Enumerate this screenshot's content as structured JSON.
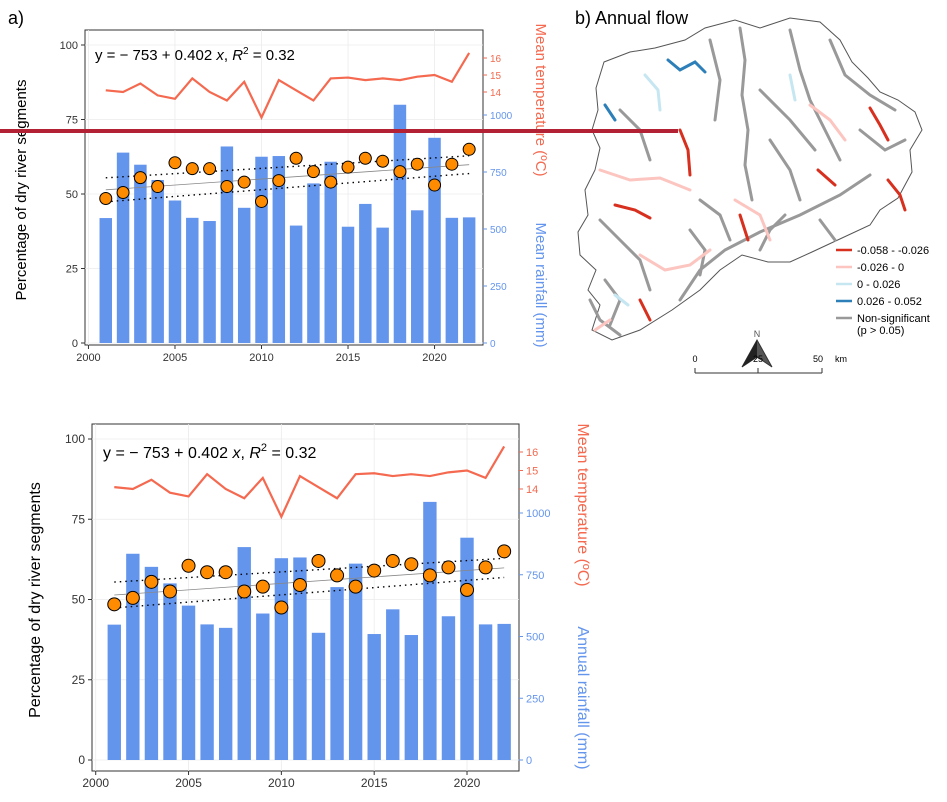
{
  "panel_a_label": "a)",
  "panel_b_label": "b) Annual flow",
  "colors": {
    "bars": "#6495ED",
    "temperature_line": "#F4694F",
    "points_fill": "#FF8C00",
    "trend_up": "#d7301f",
    "trend_light_up": "#fcc5c0",
    "trend_light_down": "#c6e6f2",
    "trend_down": "#2c7fb8",
    "non_significant": "#999999",
    "divider": "#B22234"
  },
  "chart_data": [
    {
      "type": "bar",
      "panel": "a",
      "equation": "y = − 753 + 0.402 x, R² = 0.32",
      "equation_prefix": "y = − 753 + 0.402 ",
      "equation_x": "x",
      "equation_mid": ", ",
      "equation_r": "R",
      "equation_sup": "2",
      "equation_suffix": " = 0.32",
      "ylabel_left": "Percentage of dry river segments",
      "ylabel_right_temp": "Mean temperature (ºC)",
      "ylabel_right_rain": "Mean rainfall (mm)",
      "x_ticks": [
        "2000",
        "2005",
        "2010",
        "2015",
        "2020"
      ],
      "y_ticks_left": [
        "0",
        "25",
        "50",
        "75",
        "100"
      ],
      "temp_ticks": [
        "14",
        "15",
        "16"
      ],
      "rain_ticks": [
        "0",
        "250",
        "500",
        "750",
        "1000"
      ],
      "xlim": [
        1999.8,
        2022.8
      ],
      "ylim": [
        0,
        100
      ],
      "temp_range": [
        14,
        16
      ],
      "rain_range": [
        0,
        1000
      ],
      "years": [
        2001,
        2002,
        2003,
        2004,
        2005,
        2006,
        2007,
        2008,
        2009,
        2010,
        2011,
        2012,
        2013,
        2014,
        2015,
        2016,
        2017,
        2018,
        2019,
        2020,
        2021,
        2022
      ],
      "rainfall_mm": [
        548,
        835,
        782,
        715,
        625,
        549,
        535,
        862,
        593,
        817,
        820,
        515,
        700,
        795,
        510,
        610,
        506,
        1045,
        582,
        900,
        549,
        551
      ],
      "dry_percentage": [
        48.5,
        50.5,
        55.5,
        52.5,
        60.5,
        58.5,
        58.5,
        52.5,
        54,
        47.5,
        54.5,
        62,
        57.5,
        54,
        59,
        62,
        61,
        57.5,
        60,
        53,
        60,
        65
      ],
      "mean_temperature": [
        14.1,
        14.0,
        14.5,
        13.8,
        13.6,
        14.8,
        14.0,
        13.5,
        14.6,
        12.5,
        14.7,
        14.1,
        13.5,
        14.8,
        14.85,
        14.7,
        14.8,
        14.7,
        14.9,
        15.0,
        14.6,
        16.3
      ],
      "trend": {
        "intercept": -753,
        "slope": 0.402,
        "r2": 0.32
      }
    },
    {
      "type": "bar",
      "panel": "a-repeat",
      "equation_prefix": "y = − 753 + 0.402 ",
      "equation_x": "x",
      "equation_mid": ", ",
      "equation_r": "R",
      "equation_sup": "2",
      "equation_suffix": " = 0.32",
      "ylabel_left": "Percentage of dry river segments",
      "ylabel_right_temp": "Mean temperature (ºC)",
      "ylabel_right_rain": "Annual rainfall (mm)",
      "x_ticks": [
        "2000",
        "2005",
        "2010",
        "2015",
        "2020"
      ],
      "y_ticks_left": [
        "0",
        "25",
        "50",
        "75",
        "100"
      ],
      "temp_ticks": [
        "14",
        "15",
        "16"
      ],
      "rain_ticks": [
        "0",
        "250",
        "500",
        "750",
        "1000"
      ]
    }
  ],
  "map": {
    "legend": [
      {
        "label": "-0.058 - -0.026",
        "color": "#d7301f"
      },
      {
        "label": "-0.026 - 0",
        "color": "#fcc5c0"
      },
      {
        "label": "0 - 0.026",
        "color": "#c6e6f2"
      },
      {
        "label": "0.026 - 0.052",
        "color": "#2c7fb8"
      },
      {
        "label": "Non-significant",
        "color": "#999999"
      },
      {
        "label": "(p > 0.05)",
        "color": ""
      }
    ],
    "north_label": "N",
    "scale_labels": [
      "0",
      "25",
      "50",
      "km"
    ]
  }
}
